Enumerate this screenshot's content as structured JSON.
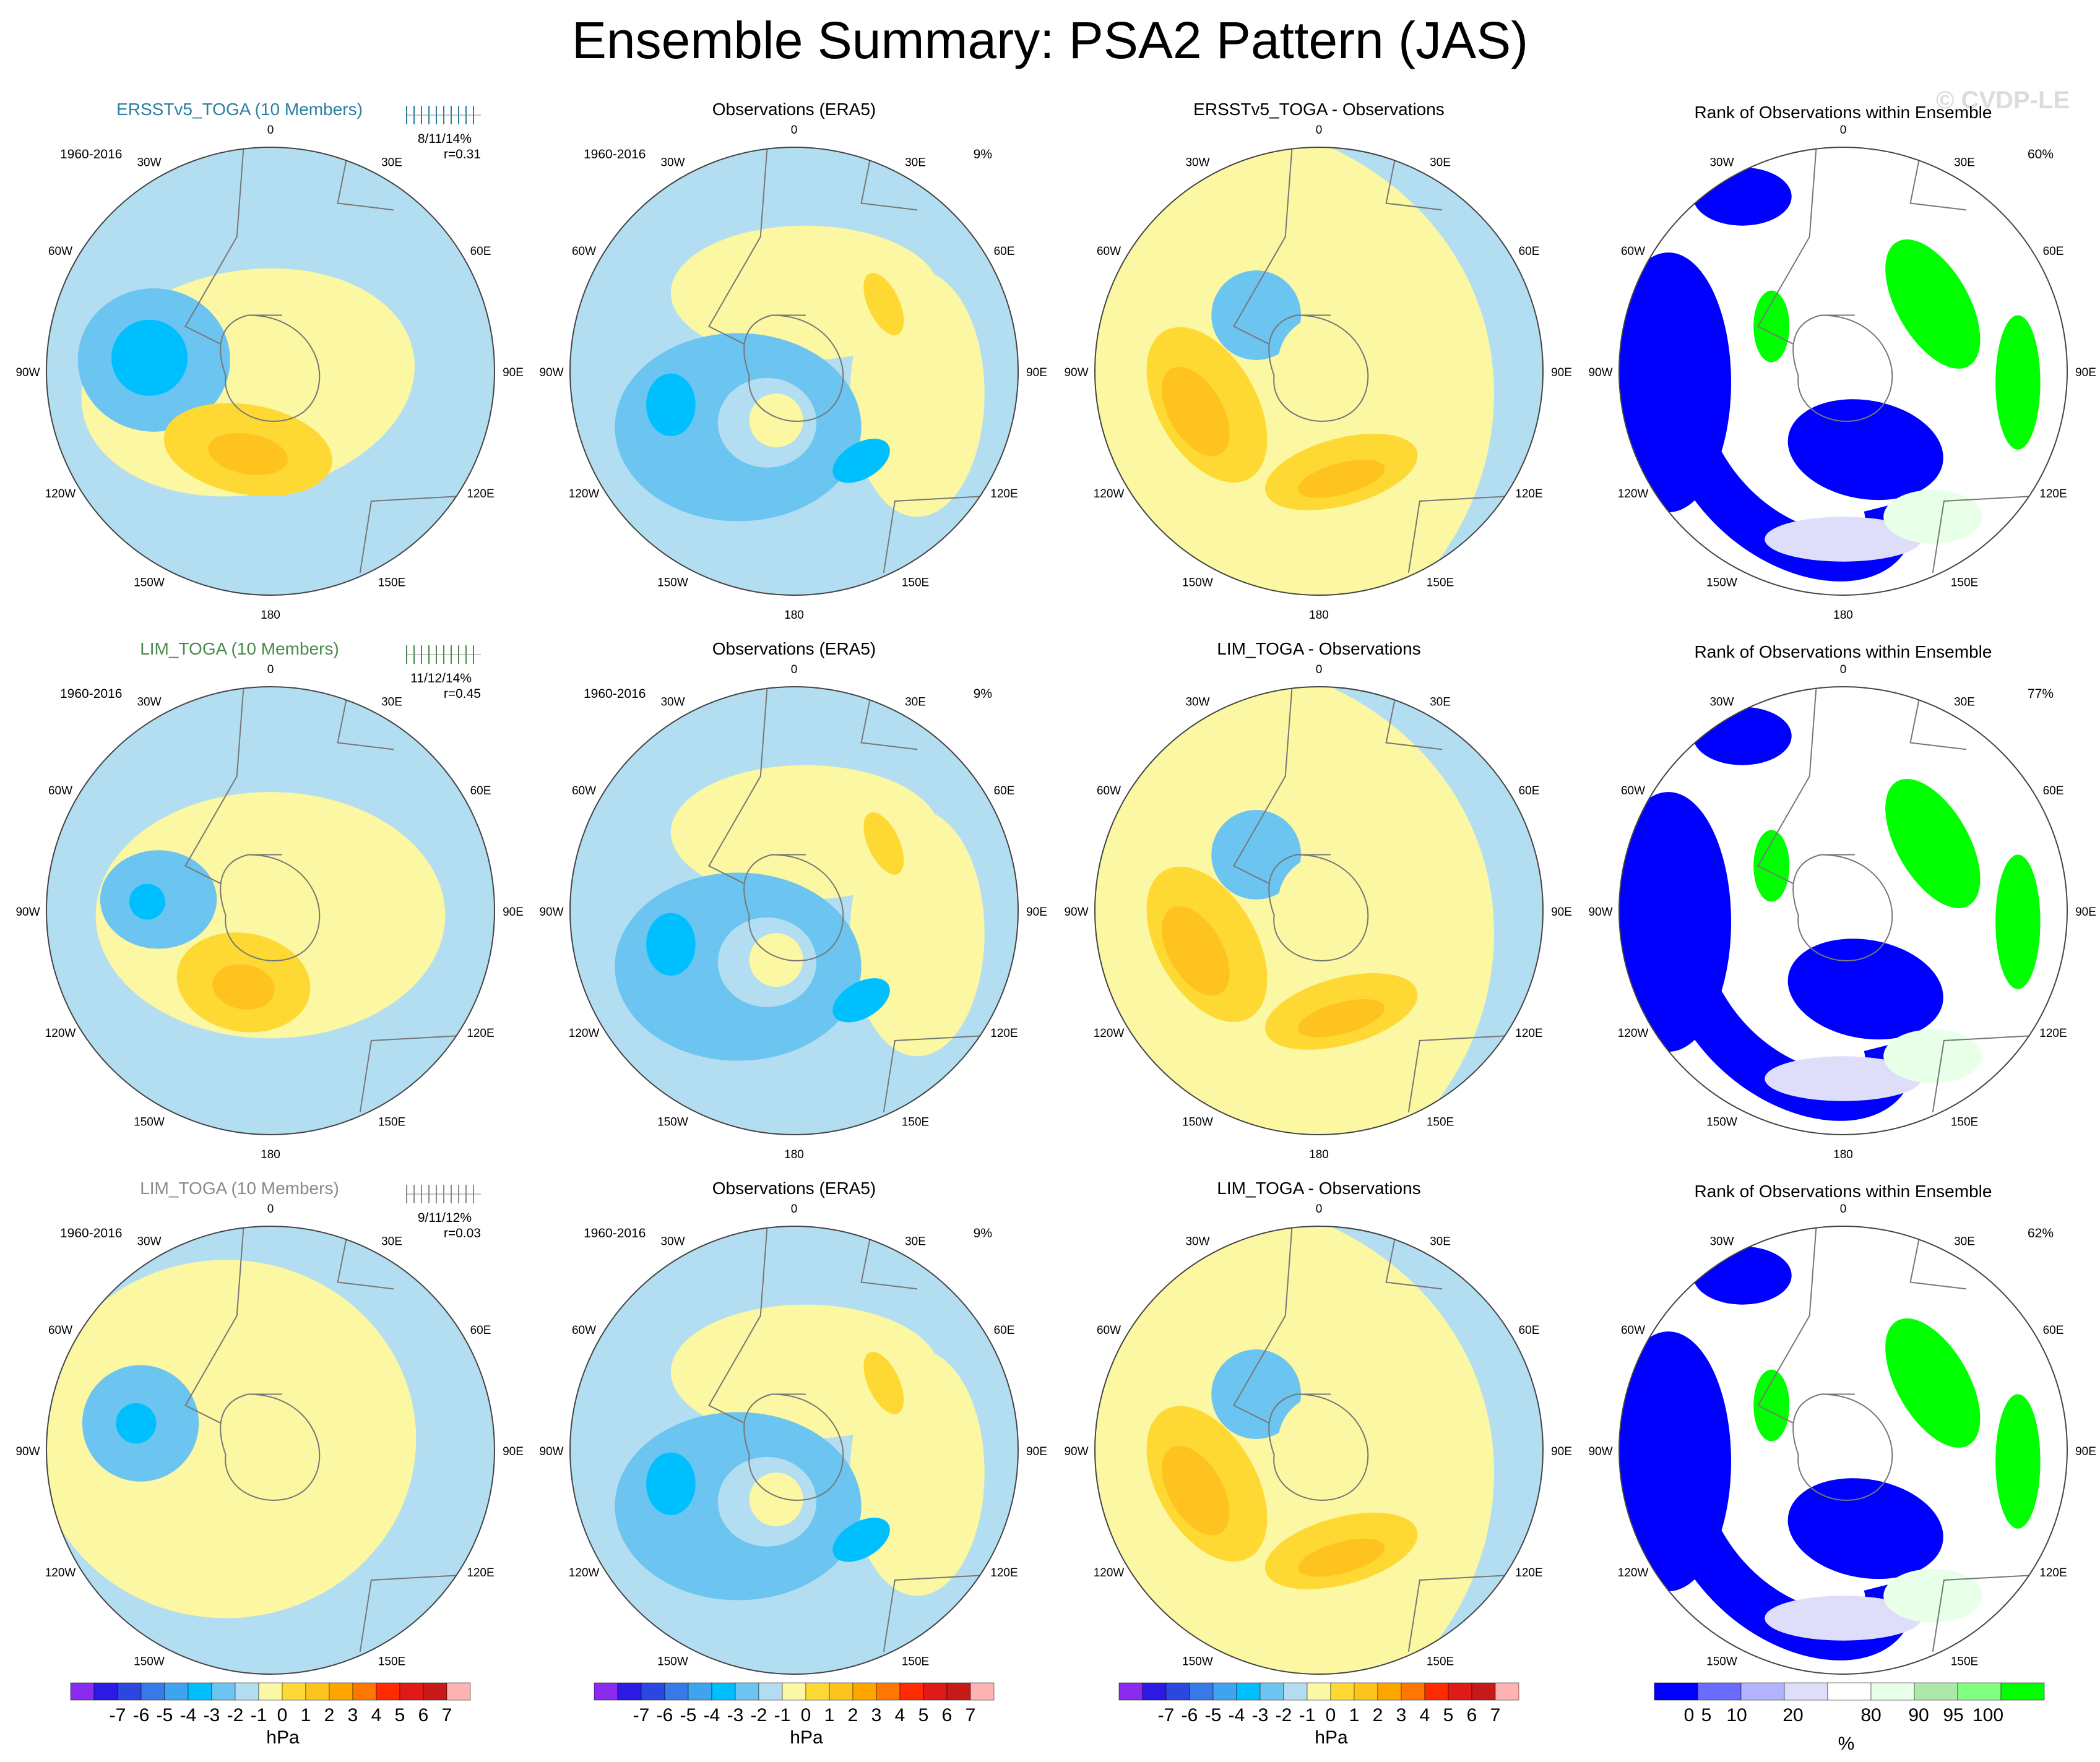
{
  "figure": {
    "title": "Ensemble Summary: PSA2 Pattern (JAS)",
    "watermark": "© CVDP-LE"
  },
  "colors": {
    "scale": [
      "#8b2bf0",
      "#2c19e4",
      "#2c46e0",
      "#3779e6",
      "#3ea4f0",
      "#00bfff",
      "#6cc4f0",
      "#b3def2",
      "#fbf7a2",
      "#ffd933",
      "#ffc31f",
      "#ffa500",
      "#ff7700",
      "#ff2b00",
      "#e01919",
      "#c81919",
      "#ffb3b3"
    ],
    "rank": [
      "#0000ff",
      "#6b6bff",
      "#b3b3ff",
      "#dedefb",
      "#ffffff",
      "#e8ffe8",
      "#ace8ac",
      "#80ff80",
      "#00ff00"
    ],
    "title_row1": "#2a7fa0",
    "title_row2": "#4a8a4a",
    "title_row3": "#8a8a8a"
  },
  "longitude_labels": [
    "0",
    "30E",
    "60E",
    "90E",
    "120E",
    "150E",
    "180",
    "150W",
    "120W",
    "90W",
    "60W",
    "30W"
  ],
  "rows": [
    {
      "ensemble_title": "ERSSTv5_TOGA (10 Members)",
      "period": "1960-2016",
      "stats": "8/11/14%",
      "corr": "r=0.31",
      "obs_title": "Observations (ERA5)",
      "obs_period": "1960-2016",
      "obs_pct": "9%",
      "diff_title": "ERSSTv5_TOGA - Observations",
      "rank_title": "Rank of Observations within Ensemble",
      "rank_pct": "60%"
    },
    {
      "ensemble_title": "LIM_TOGA (10 Members)",
      "period": "1960-2016",
      "stats": "11/12/14%",
      "corr": "r=0.45",
      "obs_title": "Observations (ERA5)",
      "obs_period": "1960-2016",
      "obs_pct": "9%",
      "diff_title": "LIM_TOGA - Observations",
      "rank_title": "Rank of Observations within Ensemble",
      "rank_pct": "77%"
    },
    {
      "ensemble_title": "LIM_TOGA (10 Members)",
      "period": "1960-2016",
      "stats": "9/11/12%",
      "corr": "r=0.03",
      "obs_title": "Observations (ERA5)",
      "obs_period": "1960-2016",
      "obs_pct": "9%",
      "diff_title": "LIM_TOGA - Observations",
      "rank_title": "Rank of Observations within Ensemble",
      "rank_pct": "62%"
    }
  ],
  "colorbar": {
    "labels": [
      "-7",
      "-6",
      "-5",
      "-4",
      "-3",
      "-2",
      "-1",
      "0",
      "1",
      "2",
      "3",
      "4",
      "5",
      "6",
      "7"
    ],
    "unit": "hPa"
  },
  "rank_colorbar": {
    "labels": [
      "0",
      "5",
      "10",
      "20",
      "80",
      "90",
      "95",
      "100"
    ],
    "unit": "%"
  }
}
